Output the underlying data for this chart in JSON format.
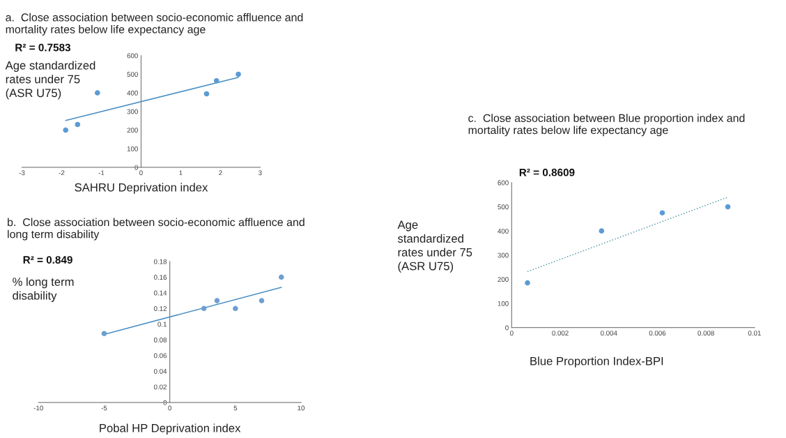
{
  "chart_data": [
    {
      "type": "scatter",
      "title": "a.  Close association between socio-economic affluence and\nmortality rates below life expectancy age",
      "xlabel": "SAHRU Deprivation index",
      "ylabel": "Age standardized\nrates under 75\n(ASR U75)",
      "annotations": [
        "R² = 0.7583"
      ],
      "xlim": [
        -3,
        3
      ],
      "ylim": [
        0,
        600
      ],
      "xticks": [
        -3,
        -2,
        -1,
        0,
        1,
        2,
        3
      ],
      "yticks": [
        0,
        100,
        200,
        300,
        400,
        500,
        600
      ],
      "grid": false,
      "series": [
        {
          "color": "#5b9bd5",
          "marker": "circle",
          "x": [
            -1.9,
            -1.6,
            -1.1,
            1.65,
            1.9,
            2.45
          ],
          "values": [
            200,
            230,
            400,
            395,
            465,
            500
          ]
        },
        {
          "type": "line",
          "color": "#4a8fc4",
          "marker": "none",
          "x": [
            -1.9,
            2.45
          ],
          "values": [
            252,
            483
          ]
        }
      ]
    },
    {
      "type": "scatter",
      "title": "b.  Close association between socio-economic affluence and\nlong term disability",
      "xlabel": "Pobal HP Deprivation index",
      "ylabel": "% long term\ndisability",
      "annotations": [
        "R² = 0.849"
      ],
      "xlim": [
        -10,
        10
      ],
      "ylim": [
        0,
        0.18
      ],
      "xticks": [
        -10,
        -5,
        0,
        5,
        10
      ],
      "yticks": [
        0,
        0.02,
        0.04,
        0.06,
        0.08,
        0.1,
        0.12,
        0.14,
        0.16,
        0.18
      ],
      "grid": false,
      "series": [
        {
          "color": "#6f9fd0",
          "marker": "circle",
          "x": [
            -5,
            2.6,
            3.6,
            5,
            7,
            8.5
          ],
          "values": [
            0.088,
            0.12,
            0.13,
            0.12,
            0.13,
            0.16
          ]
        },
        {
          "type": "line",
          "color": "#4a8fc4",
          "marker": "none",
          "x": [
            -5,
            8.5
          ],
          "values": [
            0.087,
            0.147
          ]
        }
      ]
    },
    {
      "type": "scatter",
      "title": "c.  Close association between Blue proportion index and\nmortality rates below life expectancy age",
      "xlabel": "Blue Proportion Index-BPI",
      "ylabel": "Age\nstandardized\nrates under 75\n(ASR U75)",
      "annotations": [
        "R² = 0.8609"
      ],
      "xlim": [
        0,
        0.01
      ],
      "ylim": [
        0,
        600
      ],
      "xticks": [
        0,
        0.002,
        0.004,
        0.006,
        0.008,
        0.01
      ],
      "yticks": [
        0,
        100,
        200,
        300,
        400,
        500,
        600
      ],
      "grid": false,
      "series": [
        {
          "color": "#5b9bd5",
          "marker": "circle",
          "x": [
            0.00065,
            0.0037,
            0.0062,
            0.0089
          ],
          "values": [
            185,
            400,
            475,
            500
          ]
        },
        {
          "type": "line",
          "color": "#5aa0a8",
          "marker": "none",
          "line_style": "dotted",
          "x": [
            0.00065,
            0.0089
          ],
          "values": [
            232,
            540
          ]
        }
      ]
    }
  ]
}
